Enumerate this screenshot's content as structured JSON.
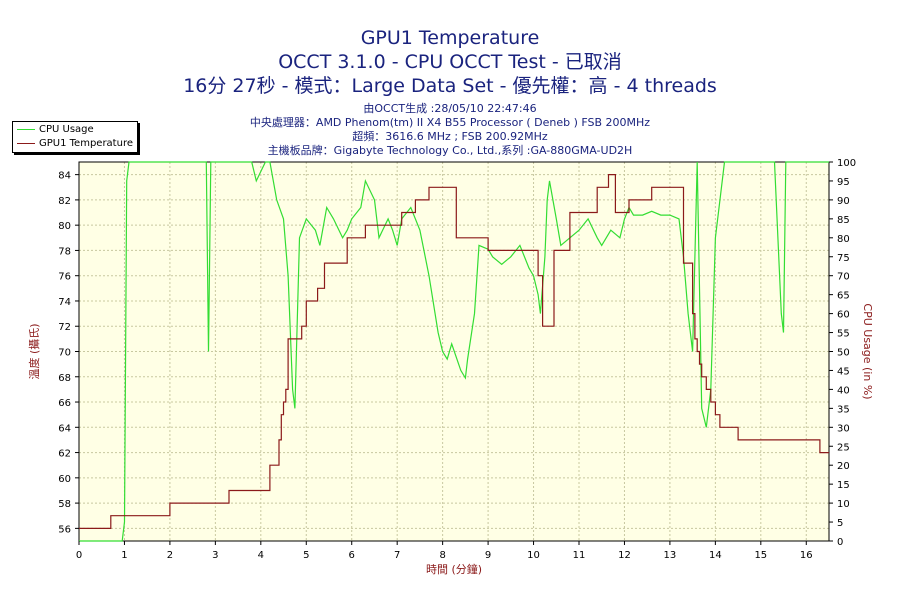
{
  "header": {
    "title": "GPU1 Temperature",
    "subtitle": "OCCT 3.1.0 - CPU OCCT Test - 已取消",
    "subtitle2": "16分 27秒 - 模式：Large Data Set - 優先權：高 - 4 threads",
    "info_lines": [
      "由OCCT生成 :28/05/10 22:47:46",
      "中央處理器：AMD Phenom(tm) II X4 B55 Processor ( Deneb ) FSB 200MHz",
      "超頻：3616.6 MHz ; FSB 200.92MHz",
      "主機板品牌：Gigabyte Technology Co., Ltd.,系列 :GA-880GMA-UD2H"
    ]
  },
  "legend": {
    "items": [
      {
        "label": "CPU Usage",
        "color": "#33dd33"
      },
      {
        "label": "GPU1 Temperature",
        "color": "#8b1a1a"
      }
    ]
  },
  "colors": {
    "plot_bg": "#ffffe5",
    "grid": "#c8c8a0",
    "cpu": "#33dd33",
    "temp": "#8b1a1a",
    "title": "#1a237e",
    "axis_label": "#8b1a1a"
  },
  "chart_data": {
    "type": "line",
    "title": "GPU1 Temperature",
    "xlabel": "時間 (分鐘)",
    "ylabel_left": "溫度 (攝氏)",
    "ylabel_right": "CPU Usage (in %)",
    "xlim": [
      0,
      16.5
    ],
    "ylim_left": [
      55,
      85
    ],
    "ylim_right": [
      0,
      100
    ],
    "x_ticks": [
      0,
      1,
      2,
      3,
      4,
      5,
      6,
      7,
      8,
      9,
      10,
      11,
      12,
      13,
      14,
      15,
      16
    ],
    "y_left_ticks": [
      56,
      58,
      60,
      62,
      64,
      66,
      68,
      70,
      72,
      74,
      76,
      78,
      80,
      82,
      84
    ],
    "y_right_ticks": [
      0,
      5,
      10,
      15,
      20,
      25,
      30,
      35,
      40,
      45,
      50,
      55,
      60,
      65,
      70,
      75,
      80,
      85,
      90,
      95,
      100
    ],
    "grid": true,
    "legend_position": "top-left",
    "series": [
      {
        "name": "GPU1 Temperature",
        "axis": "left",
        "color": "#8b1a1a",
        "x": [
          0,
          0.7,
          0.7,
          2.0,
          2.0,
          3.3,
          3.3,
          4.2,
          4.2,
          4.4,
          4.4,
          4.45,
          4.45,
          4.5,
          4.5,
          4.55,
          4.55,
          4.6,
          4.6,
          4.9,
          4.9,
          5.0,
          5.0,
          5.25,
          5.25,
          5.4,
          5.4,
          5.9,
          5.9,
          6.3,
          6.3,
          6.6,
          6.6,
          7.1,
          7.1,
          7.4,
          7.4,
          7.7,
          7.7,
          8.3,
          8.3,
          9.0,
          9.0,
          9.2,
          9.2,
          10.1,
          10.1,
          10.2,
          10.2,
          10.45,
          10.45,
          10.8,
          10.8,
          11.4,
          11.4,
          11.65,
          11.65,
          11.8,
          11.8,
          12.1,
          12.1,
          12.5,
          12.5,
          12.6,
          12.6,
          12.85,
          12.85,
          13.3,
          13.3,
          13.5,
          13.5,
          13.55,
          13.55,
          13.6,
          13.6,
          13.65,
          13.65,
          13.7,
          13.7,
          13.8,
          13.8,
          13.9,
          13.9,
          14.0,
          14.0,
          14.1,
          14.1,
          14.35,
          14.35,
          14.5,
          14.5,
          15.4,
          15.4,
          16.3,
          16.3,
          16.5
        ],
        "y": [
          56,
          56,
          57,
          57,
          58,
          58,
          59,
          59,
          61,
          61,
          63,
          63,
          65,
          65,
          66,
          66,
          67,
          67,
          71,
          71,
          72,
          72,
          74,
          74,
          75,
          75,
          77,
          77,
          79,
          79,
          80,
          80,
          80,
          80,
          81,
          81,
          82,
          82,
          83,
          83,
          79,
          79,
          78,
          78,
          78,
          78,
          76,
          76,
          72,
          72,
          78,
          78,
          81,
          81,
          83,
          83,
          84,
          84,
          81,
          81,
          82,
          82,
          82,
          82,
          83,
          83,
          83,
          83,
          77,
          77,
          73,
          73,
          71,
          71,
          70,
          70,
          69,
          69,
          68,
          68,
          67,
          67,
          66,
          66,
          65,
          65,
          64,
          64,
          64,
          64,
          63,
          63,
          63,
          63,
          62,
          62
        ]
      },
      {
        "name": "CPU Usage",
        "axis": "right",
        "color": "#33dd33",
        "x": [
          0,
          0.95,
          1.0,
          1.05,
          1.1,
          1.2,
          2.8,
          2.85,
          2.9,
          3.2,
          3.8,
          3.9,
          4.1,
          4.2,
          4.35,
          4.5,
          4.6,
          4.7,
          4.75,
          4.85,
          5.0,
          5.2,
          5.3,
          5.45,
          5.6,
          5.8,
          5.9,
          6.0,
          6.2,
          6.3,
          6.5,
          6.6,
          6.8,
          6.9,
          7.0,
          7.1,
          7.3,
          7.5,
          7.7,
          7.9,
          8.0,
          8.1,
          8.2,
          8.4,
          8.5,
          8.55,
          8.7,
          8.8,
          9.0,
          9.1,
          9.3,
          9.5,
          9.7,
          9.9,
          10.0,
          10.1,
          10.15,
          10.25,
          10.3,
          10.35,
          10.5,
          10.6,
          10.8,
          11.0,
          11.2,
          11.4,
          11.5,
          11.7,
          11.9,
          12.0,
          12.1,
          12.2,
          12.4,
          12.6,
          12.8,
          13.0,
          13.2,
          13.3,
          13.4,
          13.5,
          13.6,
          13.7,
          13.8,
          13.9,
          14.0,
          14.2,
          14.4,
          14.6,
          15.0,
          15.3,
          15.45,
          15.5,
          15.55,
          15.7,
          16.0,
          16.5
        ],
        "y": [
          0,
          0,
          5,
          95,
          100,
          100,
          100,
          50,
          100,
          100,
          100,
          95,
          100,
          100,
          90,
          85,
          70,
          40,
          35,
          80,
          85,
          82,
          78,
          88,
          85,
          80,
          82,
          85,
          88,
          95,
          90,
          80,
          85,
          82,
          78,
          85,
          88,
          82,
          70,
          55,
          50,
          48,
          52,
          45,
          43,
          48,
          60,
          78,
          77,
          75,
          73,
          75,
          78,
          72,
          70,
          65,
          60,
          75,
          90,
          95,
          85,
          78,
          80,
          82,
          85,
          80,
          78,
          82,
          80,
          85,
          88,
          86,
          86,
          87,
          86,
          86,
          85,
          75,
          60,
          50,
          100,
          35,
          30,
          40,
          80,
          100,
          100,
          100,
          100,
          100,
          60,
          55,
          100,
          100,
          100,
          100
        ]
      }
    ]
  }
}
